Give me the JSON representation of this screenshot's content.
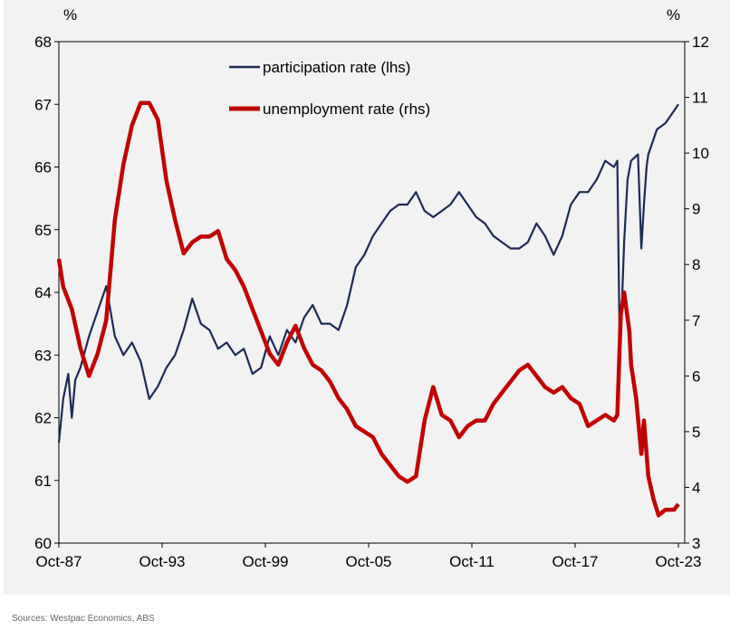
{
  "chart_data": {
    "type": "line",
    "title": "",
    "left_unit": "%",
    "right_unit": "%",
    "left_ylim": [
      60,
      68
    ],
    "right_ylim": [
      3,
      12
    ],
    "left_ticks": [
      "60",
      "61",
      "62",
      "63",
      "64",
      "65",
      "66",
      "67",
      "68"
    ],
    "right_ticks": [
      "3",
      "4",
      "5",
      "6",
      "7",
      "8",
      "9",
      "10",
      "11",
      "12"
    ],
    "x_ticks": [
      "Oct-87",
      "Oct-93",
      "Oct-99",
      "Oct-05",
      "Oct-11",
      "Oct-17",
      "Oct-23"
    ],
    "x_tick_years": [
      1987.75,
      1993.75,
      1999.75,
      2005.75,
      2011.75,
      2017.75,
      2023.75
    ],
    "xlim": [
      1987.75,
      2024.1
    ],
    "legend_position": "top-center",
    "series": [
      {
        "name": "participation rate (lhs)",
        "axis": "left",
        "color": "#1f2a55",
        "x": [
          1987.75,
          1988,
          1988.3,
          1988.5,
          1988.7,
          1989,
          1989.5,
          1990,
          1990.5,
          1991,
          1991.5,
          1992,
          1992.5,
          1993,
          1993.5,
          1994,
          1994.5,
          1995,
          1995.5,
          1996,
          1996.5,
          1997,
          1997.5,
          1998,
          1998.5,
          1999,
          1999.5,
          2000,
          2000.5,
          2001,
          2001.5,
          2002,
          2002.5,
          2003,
          2003.5,
          2004,
          2004.5,
          2005,
          2005.5,
          2006,
          2006.5,
          2007,
          2007.5,
          2008,
          2008.5,
          2009,
          2009.5,
          2010,
          2010.5,
          2011,
          2011.5,
          2012,
          2012.5,
          2013,
          2013.5,
          2014,
          2014.5,
          2015,
          2015.5,
          2016,
          2016.5,
          2017,
          2017.5,
          2018,
          2018.5,
          2019,
          2019.5,
          2020,
          2020.2,
          2020.35,
          2020.6,
          2020.8,
          2021,
          2021.4,
          2021.6,
          2021.75,
          2021.9,
          2022,
          2022.5,
          2023,
          2023.5,
          2023.75
        ],
        "values": [
          61.6,
          62.3,
          62.7,
          62.0,
          62.6,
          62.8,
          63.3,
          63.7,
          64.1,
          63.3,
          63.0,
          63.2,
          62.9,
          62.3,
          62.5,
          62.8,
          63.0,
          63.4,
          63.9,
          63.5,
          63.4,
          63.1,
          63.2,
          63.0,
          63.1,
          62.7,
          62.8,
          63.3,
          63.0,
          63.4,
          63.2,
          63.6,
          63.8,
          63.5,
          63.5,
          63.4,
          63.8,
          64.4,
          64.6,
          64.9,
          65.1,
          65.3,
          65.4,
          65.4,
          65.6,
          65.3,
          65.2,
          65.3,
          65.4,
          65.6,
          65.4,
          65.2,
          65.1,
          64.9,
          64.8,
          64.7,
          64.7,
          64.8,
          65.1,
          64.9,
          64.6,
          64.9,
          65.4,
          65.6,
          65.6,
          65.8,
          66.1,
          66.0,
          66.1,
          62.9,
          64.8,
          65.8,
          66.1,
          66.2,
          64.7,
          65.4,
          66.0,
          66.2,
          66.6,
          66.7,
          66.9,
          67.0
        ]
      },
      {
        "name": "unemployment rate (rhs)",
        "axis": "right",
        "color": "#c00000",
        "x": [
          1987.75,
          1988,
          1988.5,
          1989,
          1989.5,
          1990,
          1990.5,
          1991,
          1991.5,
          1992,
          1992.5,
          1993,
          1993.5,
          1994,
          1994.5,
          1995,
          1995.5,
          1996,
          1996.5,
          1997,
          1997.5,
          1998,
          1998.5,
          1999,
          1999.5,
          2000,
          2000.5,
          2001,
          2001.5,
          2002,
          2002.5,
          2003,
          2003.5,
          2004,
          2004.5,
          2005,
          2005.5,
          2006,
          2006.5,
          2007,
          2007.5,
          2008,
          2008.5,
          2009,
          2009.5,
          2010,
          2010.5,
          2011,
          2011.5,
          2012,
          2012.5,
          2013,
          2013.5,
          2014,
          2014.5,
          2015,
          2015.5,
          2016,
          2016.5,
          2017,
          2017.5,
          2018,
          2018.5,
          2019,
          2019.5,
          2020,
          2020.2,
          2020.4,
          2020.6,
          2020.9,
          2021,
          2021.3,
          2021.6,
          2021.75,
          2022,
          2022.3,
          2022.6,
          2023,
          2023.5,
          2023.75
        ],
        "values": [
          8.1,
          7.6,
          7.2,
          6.5,
          6.0,
          6.4,
          7.0,
          8.8,
          9.8,
          10.5,
          10.9,
          10.9,
          10.6,
          9.5,
          8.8,
          8.2,
          8.4,
          8.5,
          8.5,
          8.6,
          8.1,
          7.9,
          7.6,
          7.2,
          6.8,
          6.4,
          6.2,
          6.6,
          6.9,
          6.5,
          6.2,
          6.1,
          5.9,
          5.6,
          5.4,
          5.1,
          5.0,
          4.9,
          4.6,
          4.4,
          4.2,
          4.1,
          4.2,
          5.2,
          5.8,
          5.3,
          5.2,
          4.9,
          5.1,
          5.2,
          5.2,
          5.5,
          5.7,
          5.9,
          6.1,
          6.2,
          6.0,
          5.8,
          5.7,
          5.8,
          5.6,
          5.5,
          5.1,
          5.2,
          5.3,
          5.2,
          5.3,
          7.1,
          7.5,
          6.8,
          6.2,
          5.6,
          4.6,
          5.2,
          4.2,
          3.8,
          3.5,
          3.6,
          3.6,
          3.7
        ]
      }
    ]
  },
  "source": "Sources: Westpac Economics, ABS"
}
